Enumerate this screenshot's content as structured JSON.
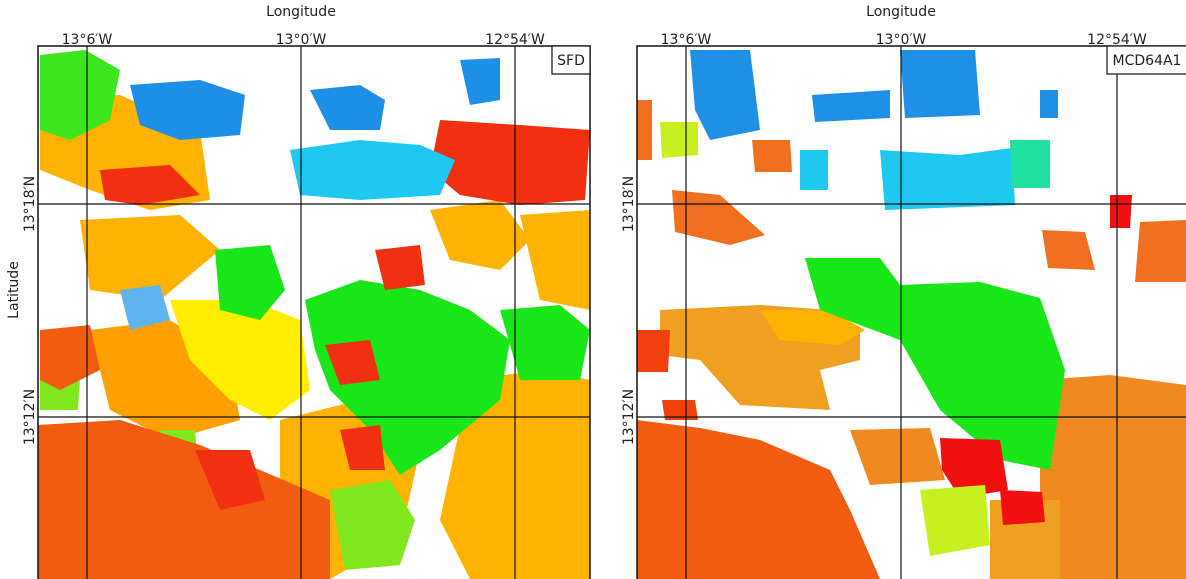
{
  "panels": [
    {
      "title": "SFD",
      "x_axis_label": "Longitude",
      "y_axis_label": "Latitude",
      "x_ticks": [
        "13°6′W",
        "13°0′W",
        "12°54′W"
      ],
      "y_ticks": [
        "13°18′N",
        "13°12′N"
      ]
    },
    {
      "title": "MCD64A1",
      "x_axis_label": "Longitude",
      "x_ticks": [
        "13°6′W",
        "13°0′W",
        "12°54′W"
      ],
      "y_ticks": [
        "13°18′N",
        "13°12′N"
      ]
    }
  ]
}
